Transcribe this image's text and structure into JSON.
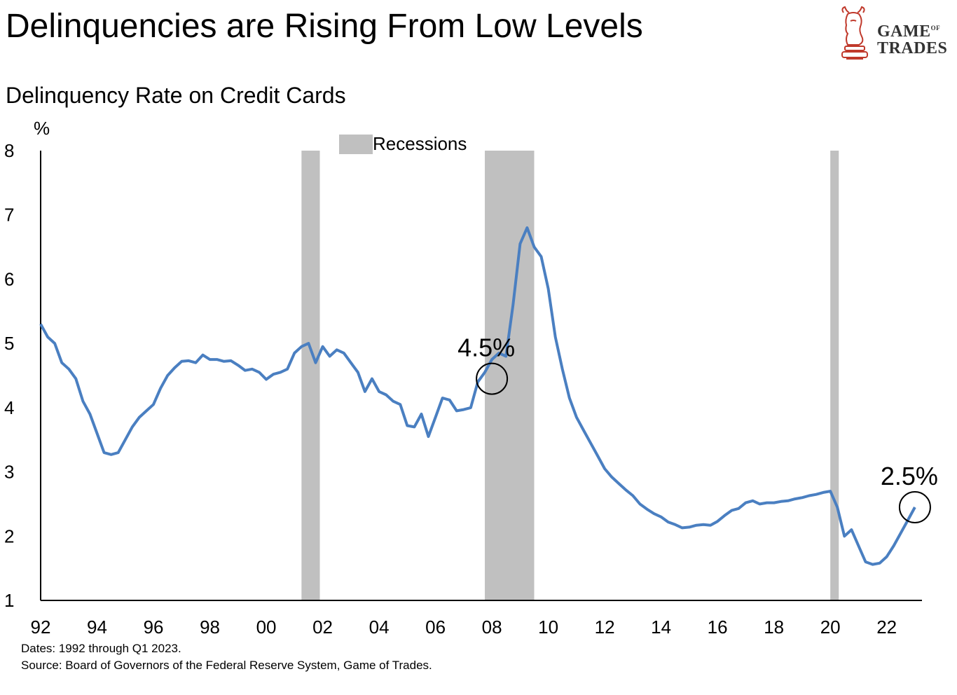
{
  "header": {
    "title": "Delinquencies are Rising From Low Levels",
    "subtitle": "Delinquency Rate on Credit Cards"
  },
  "logo": {
    "line1": "GAME",
    "line1_small": "OF",
    "line2": "TRADES",
    "icon": "bull-chess-knight-icon",
    "color": "#c0392b"
  },
  "footnotes": {
    "dates": "Dates: 1992 through Q1 2023.",
    "source": "Source: Board of Governors of the Federal Reserve System, Game of Trades."
  },
  "chart_data": {
    "type": "line",
    "title": "Delinquency Rate on Credit Cards",
    "ylabel": "%",
    "xlabel": "",
    "ylim": [
      1,
      8
    ],
    "xlim": [
      1992.0,
      2023.25
    ],
    "y_ticks": [
      1,
      2,
      3,
      4,
      5,
      6,
      7,
      8
    ],
    "x_ticks": [
      {
        "value": 1992,
        "label": "92"
      },
      {
        "value": 1994,
        "label": "94"
      },
      {
        "value": 1996,
        "label": "96"
      },
      {
        "value": 1998,
        "label": "98"
      },
      {
        "value": 2000,
        "label": "00"
      },
      {
        "value": 2002,
        "label": "02"
      },
      {
        "value": 2004,
        "label": "04"
      },
      {
        "value": 2006,
        "label": "06"
      },
      {
        "value": 2008,
        "label": "08"
      },
      {
        "value": 2010,
        "label": "10"
      },
      {
        "value": 2012,
        "label": "12"
      },
      {
        "value": 2014,
        "label": "14"
      },
      {
        "value": 2016,
        "label": "16"
      },
      {
        "value": 2018,
        "label": "18"
      },
      {
        "value": 2020,
        "label": "20"
      },
      {
        "value": 2022,
        "label": "22"
      }
    ],
    "legend": {
      "label": "Recessions",
      "position": "top-center",
      "color": "#c0c0c0"
    },
    "recessions": [
      {
        "start": 2001.25,
        "end": 2001.9
      },
      {
        "start": 2007.75,
        "end": 2009.5
      },
      {
        "start": 2020.0,
        "end": 2020.3
      }
    ],
    "series": [
      {
        "name": "Delinquency Rate on Credit Cards",
        "color": "#4a7fc1",
        "x": [
          1992.0,
          1992.25,
          1992.5,
          1992.75,
          1993.0,
          1993.25,
          1993.5,
          1993.75,
          1994.0,
          1994.25,
          1994.5,
          1994.75,
          1995.0,
          1995.25,
          1995.5,
          1995.75,
          1996.0,
          1996.25,
          1996.5,
          1996.75,
          1997.0,
          1997.25,
          1997.5,
          1997.75,
          1998.0,
          1998.25,
          1998.5,
          1998.75,
          1999.0,
          1999.25,
          1999.5,
          1999.75,
          2000.0,
          2000.25,
          2000.5,
          2000.75,
          2001.0,
          2001.25,
          2001.5,
          2001.75,
          2002.0,
          2002.25,
          2002.5,
          2002.75,
          2003.0,
          2003.25,
          2003.5,
          2003.75,
          2004.0,
          2004.25,
          2004.5,
          2004.75,
          2005.0,
          2005.25,
          2005.5,
          2005.75,
          2006.0,
          2006.25,
          2006.5,
          2006.75,
          2007.0,
          2007.25,
          2007.5,
          2007.75,
          2008.0,
          2008.25,
          2008.5,
          2008.75,
          2009.0,
          2009.25,
          2009.5,
          2009.75,
          2010.0,
          2010.25,
          2010.5,
          2010.75,
          2011.0,
          2011.25,
          2011.5,
          2011.75,
          2012.0,
          2012.25,
          2012.5,
          2012.75,
          2013.0,
          2013.25,
          2013.5,
          2013.75,
          2014.0,
          2014.25,
          2014.5,
          2014.75,
          2015.0,
          2015.25,
          2015.5,
          2015.75,
          2016.0,
          2016.25,
          2016.5,
          2016.75,
          2017.0,
          2017.25,
          2017.5,
          2017.75,
          2018.0,
          2018.25,
          2018.5,
          2018.75,
          2019.0,
          2019.25,
          2019.5,
          2019.75,
          2020.0,
          2020.25,
          2020.5,
          2020.75,
          2021.0,
          2021.25,
          2021.5,
          2021.75,
          2022.0,
          2022.25,
          2022.5,
          2022.75,
          2023.0
        ],
        "values": [
          5.3,
          5.1,
          5.0,
          4.7,
          4.6,
          4.45,
          4.1,
          3.9,
          3.6,
          3.3,
          3.27,
          3.3,
          3.5,
          3.7,
          3.85,
          3.95,
          4.05,
          4.3,
          4.5,
          4.62,
          4.72,
          4.73,
          4.7,
          4.82,
          4.75,
          4.75,
          4.72,
          4.73,
          4.66,
          4.58,
          4.6,
          4.55,
          4.44,
          4.52,
          4.55,
          4.6,
          4.85,
          4.95,
          5.0,
          4.7,
          4.95,
          4.8,
          4.9,
          4.85,
          4.7,
          4.55,
          4.25,
          4.45,
          4.25,
          4.2,
          4.1,
          4.05,
          3.72,
          3.7,
          3.9,
          3.55,
          3.85,
          4.15,
          4.12,
          3.95,
          3.97,
          4.0,
          4.4,
          4.55,
          4.75,
          4.85,
          4.8,
          5.6,
          6.55,
          6.8,
          6.5,
          6.35,
          5.85,
          5.1,
          4.6,
          4.15,
          3.85,
          3.65,
          3.45,
          3.25,
          3.05,
          2.92,
          2.82,
          2.72,
          2.63,
          2.5,
          2.42,
          2.35,
          2.3,
          2.22,
          2.18,
          2.13,
          2.14,
          2.17,
          2.18,
          2.17,
          2.23,
          2.32,
          2.4,
          2.43,
          2.52,
          2.55,
          2.5,
          2.52,
          2.52,
          2.54,
          2.55,
          2.58,
          2.6,
          2.63,
          2.65,
          2.68,
          2.7,
          2.45,
          2.0,
          2.1,
          1.85,
          1.6,
          1.56,
          1.58,
          1.68,
          1.85,
          2.05,
          2.25,
          2.45
        ]
      }
    ],
    "annotations": [
      {
        "label": "4.5%",
        "x": 2008.0,
        "y": 4.45
      },
      {
        "label": "2.5%",
        "x": 2023.0,
        "y": 2.45
      }
    ]
  }
}
